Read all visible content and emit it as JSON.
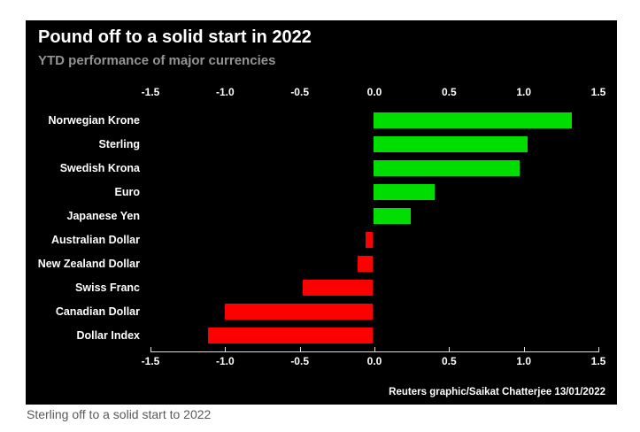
{
  "header": {
    "title": "Pound off to a solid start in 2022",
    "subtitle": "YTD performance of major currencies"
  },
  "chart_data": {
    "type": "bar",
    "orientation": "horizontal",
    "title": "Pound off to a solid start in 2022",
    "subtitle": "YTD performance of major currencies",
    "categories": [
      "Norwegian Krone",
      "Sterling",
      "Swedish Krona",
      "Euro",
      "Japanese Yen",
      "Australian Dollar",
      "New Zealand Dollar",
      "Swiss Franc",
      "Canadian Dollar",
      "Dollar Index"
    ],
    "values": [
      1.33,
      1.03,
      0.98,
      0.41,
      0.25,
      -0.05,
      -0.1,
      -0.47,
      -0.99,
      -1.1
    ],
    "xlim": [
      -1.5,
      1.5
    ],
    "x_ticks": [
      -1.5,
      -1.0,
      -0.5,
      0.0,
      0.5,
      1.0,
      1.5
    ],
    "tick_labels": [
      "-1.5",
      "-1.0",
      "-0.5",
      "0.0",
      "0.5",
      "1.0",
      "1.5"
    ],
    "axis_label_positions": [
      "top",
      "bottom"
    ],
    "grid": false,
    "legend": "none",
    "colors": {
      "positive": "#00dd00",
      "negative": "#ff0000",
      "background": "#000000",
      "axis": "#dedede",
      "label_text": "#ffffff",
      "subtitle_text": "#949494"
    }
  },
  "footer": {
    "attribution": "Reuters graphic/Saikat Chatterjee 13/01/2022"
  },
  "caption": "Sterling off to a solid start to 2022"
}
